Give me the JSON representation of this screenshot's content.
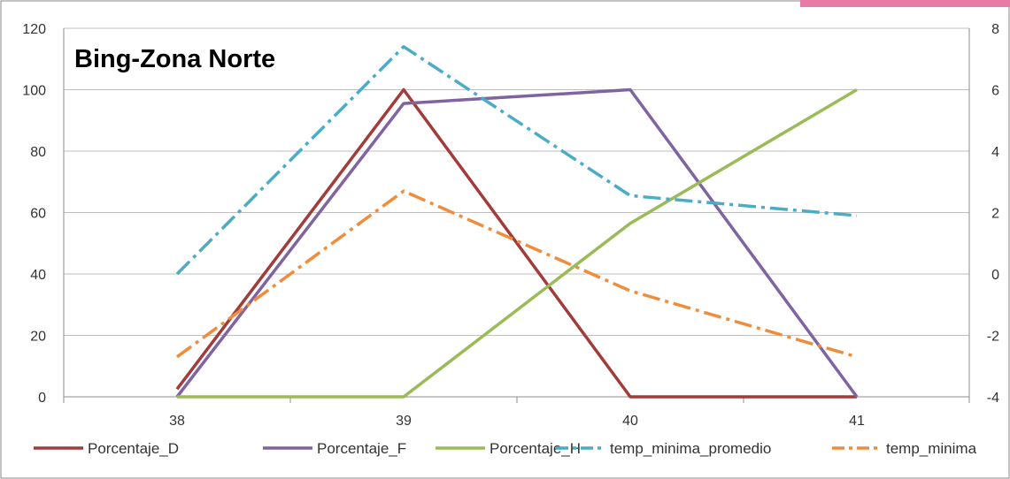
{
  "chart_data": {
    "type": "line",
    "title": "Bing-Zona Norte",
    "x": [
      38,
      39,
      40,
      41
    ],
    "x_ticks": [
      "38",
      "39",
      "40",
      "41"
    ],
    "y_left": {
      "min": 0,
      "max": 120,
      "step": 20,
      "ticks": [
        "0",
        "20",
        "40",
        "60",
        "80",
        "100",
        "120"
      ]
    },
    "y_right": {
      "min": -4,
      "max": 8,
      "step": 2,
      "ticks": [
        "-4",
        "-2",
        "0",
        "2",
        "4",
        "6",
        "8"
      ]
    },
    "grid": true,
    "legend_position": "bottom",
    "series": [
      {
        "name": "Porcentaje_D",
        "axis": "left",
        "style": "solid",
        "color": "#A33B3B",
        "values": [
          2.5,
          100,
          0,
          0
        ]
      },
      {
        "name": "Porcentaje_F",
        "axis": "left",
        "style": "solid",
        "color": "#8064A2",
        "values": [
          0,
          95.5,
          100,
          0
        ]
      },
      {
        "name": "Porcentaje_H",
        "axis": "left",
        "style": "solid",
        "color": "#9BBB59",
        "values": [
          0,
          0,
          56.5,
          100
        ]
      },
      {
        "name": "temp_minima_promedio",
        "axis": "right",
        "style": "dashdot",
        "color": "#4BACC6",
        "values": [
          0,
          7.4,
          2.55,
          1.9
        ]
      },
      {
        "name": "temp_minima",
        "axis": "right",
        "style": "dashdot",
        "color": "#F08D3C",
        "values": [
          -2.7,
          2.7,
          -0.55,
          -2.7
        ]
      }
    ]
  }
}
